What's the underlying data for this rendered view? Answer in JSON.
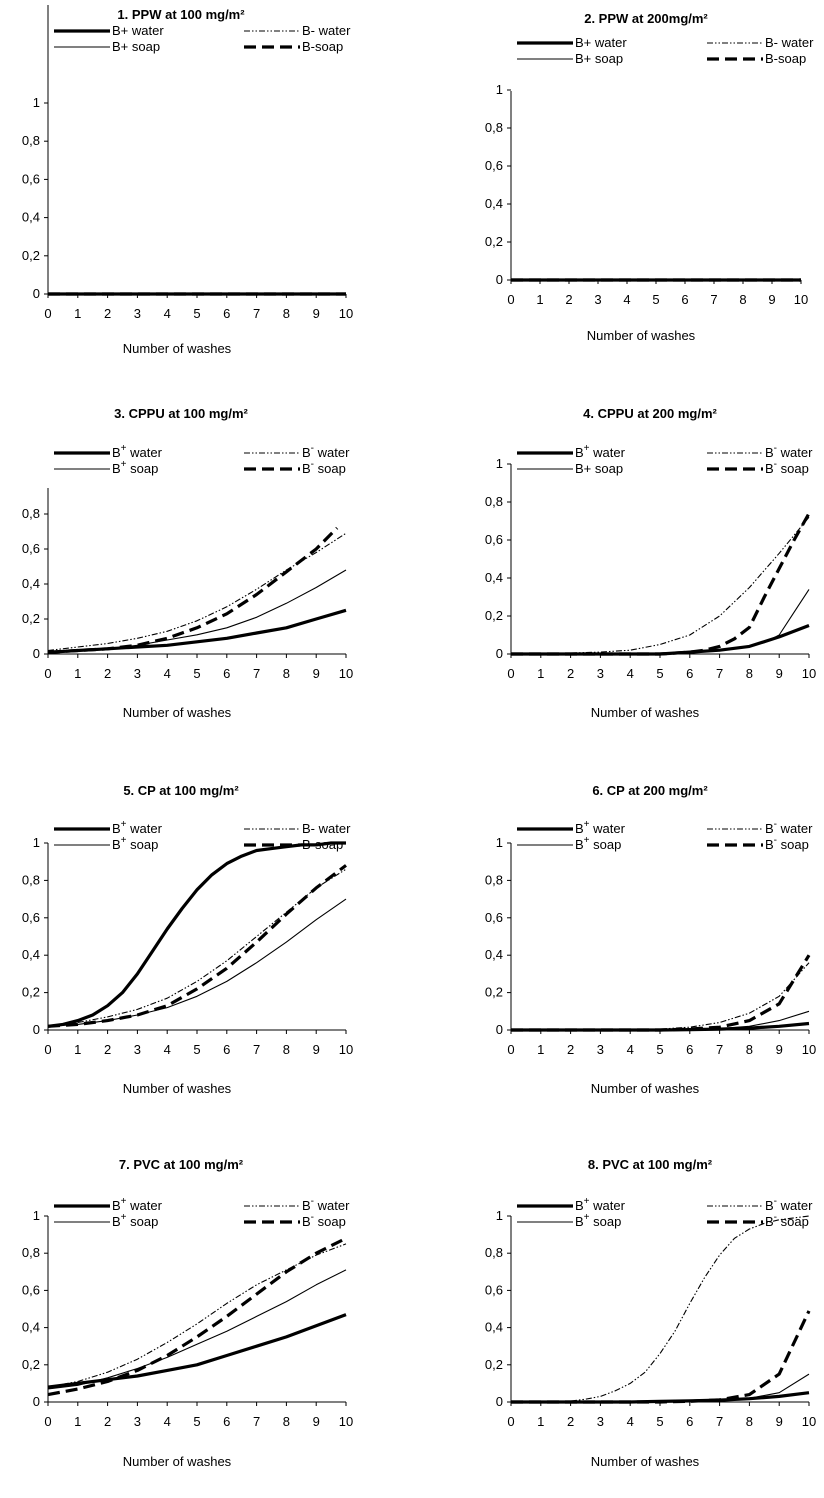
{
  "figure": {
    "background": "#ffffff",
    "line_color": "#000000"
  },
  "chart_data": [
    {
      "type": "line",
      "title": "1. PPW at 100 mg/m²",
      "xlabel": "Number of washes",
      "ylabel": "",
      "xlim": [
        0,
        10
      ],
      "ylim": [
        0,
        1
      ],
      "x_ticks": [
        "0",
        "1",
        "2",
        "3",
        "4",
        "5",
        "6",
        "7",
        "8",
        "9",
        "10"
      ],
      "y_ticks": [
        "0",
        "0,2",
        "0,4",
        "0,6",
        "0,8",
        "1"
      ],
      "grid": false,
      "legend": "top",
      "series": [
        {
          "name": "B+ water",
          "style": "thick-solid",
          "x": [
            0,
            10
          ],
          "y": [
            0,
            0
          ]
        },
        {
          "name": "B- water",
          "style": "dash-dot-dot",
          "x": [
            0,
            10
          ],
          "y": [
            0,
            0
          ]
        },
        {
          "name": "B+ soap",
          "style": "thin-solid",
          "x": [
            0,
            10
          ],
          "y": [
            0,
            0
          ]
        },
        {
          "name": "B-soap",
          "style": "thick-dash",
          "x": [
            0,
            10
          ],
          "y": [
            0,
            0
          ]
        }
      ]
    },
    {
      "type": "line",
      "title": "2. PPW at 200mg/m²",
      "xlabel": "Number of washes",
      "ylabel": "",
      "xlim": [
        0,
        10
      ],
      "ylim": [
        0,
        1
      ],
      "x_ticks": [
        "0",
        "1",
        "2",
        "3",
        "4",
        "5",
        "6",
        "7",
        "8",
        "9",
        "10"
      ],
      "y_ticks": [
        "0",
        "0,2",
        "0,4",
        "0,6",
        "0,8",
        "1"
      ],
      "grid": false,
      "legend": "top",
      "series": [
        {
          "name": "B+ water",
          "style": "thick-solid",
          "x": [
            0,
            10
          ],
          "y": [
            0,
            0
          ]
        },
        {
          "name": "B- water",
          "style": "dash-dot-dot",
          "x": [
            0,
            10
          ],
          "y": [
            0,
            0
          ]
        },
        {
          "name": "B+ soap",
          "style": "thin-solid",
          "x": [
            0,
            10
          ],
          "y": [
            0,
            0
          ]
        },
        {
          "name": "B-soap",
          "style": "thick-dash",
          "x": [
            0,
            10
          ],
          "y": [
            0,
            0
          ]
        }
      ]
    },
    {
      "type": "line",
      "title": "3. CPPU at 100 mg/m²",
      "xlabel": "Number of washes",
      "ylabel": "",
      "xlim": [
        0,
        10
      ],
      "ylim": [
        0,
        0.95
      ],
      "x_ticks": [
        "0",
        "1",
        "2",
        "3",
        "4",
        "5",
        "6",
        "7",
        "8",
        "9",
        "10"
      ],
      "y_ticks": [
        "0",
        "0,2",
        "0,4",
        "0,6",
        "0,8"
      ],
      "grid": false,
      "legend": "top",
      "series": [
        {
          "name": "B water",
          "sup": "+",
          "style": "thick-solid",
          "x": [
            0,
            1,
            2,
            3,
            4,
            5,
            6,
            7,
            8,
            9,
            10
          ],
          "y": [
            0.01,
            0.02,
            0.03,
            0.04,
            0.05,
            0.07,
            0.09,
            0.12,
            0.15,
            0.2,
            0.25
          ]
        },
        {
          "name": "B water",
          "sup": "-",
          "style": "dash-dot-dot",
          "x": [
            0,
            1,
            2,
            3,
            4,
            5,
            6,
            7,
            8,
            9,
            10
          ],
          "y": [
            0.02,
            0.04,
            0.06,
            0.09,
            0.13,
            0.19,
            0.27,
            0.37,
            0.48,
            0.58,
            0.69
          ]
        },
        {
          "name": "B soap",
          "sup": "+",
          "style": "thin-solid",
          "x": [
            0,
            1,
            2,
            3,
            4,
            5,
            6,
            7,
            8,
            9,
            10
          ],
          "y": [
            0.01,
            0.02,
            0.03,
            0.05,
            0.08,
            0.11,
            0.15,
            0.21,
            0.29,
            0.38,
            0.48
          ]
        },
        {
          "name": "B soap",
          "sup": "-",
          "style": "thick-dash",
          "x": [
            0,
            1,
            2,
            3,
            4,
            5,
            6,
            7,
            8,
            9,
            9.7
          ],
          "y": [
            0.01,
            0.02,
            0.03,
            0.05,
            0.09,
            0.15,
            0.23,
            0.34,
            0.47,
            0.6,
            0.72
          ]
        }
      ]
    },
    {
      "type": "line",
      "title": "4. CPPU at 200 mg/m²",
      "xlabel": "Number of washes",
      "ylabel": "",
      "xlim": [
        0,
        10
      ],
      "ylim": [
        0,
        1
      ],
      "x_ticks": [
        "0",
        "1",
        "2",
        "3",
        "4",
        "5",
        "6",
        "7",
        "8",
        "9",
        "10"
      ],
      "y_ticks": [
        "0",
        "0,2",
        "0,4",
        "0,6",
        "0,8",
        "1"
      ],
      "grid": false,
      "legend": "top",
      "series": [
        {
          "name": "B water",
          "sup": "+",
          "style": "thick-solid",
          "x": [
            0,
            1,
            2,
            3,
            4,
            5,
            6,
            7,
            8,
            9,
            10
          ],
          "y": [
            0,
            0,
            0,
            0,
            0,
            0,
            0.01,
            0.02,
            0.04,
            0.09,
            0.15
          ]
        },
        {
          "name": "B water",
          "sup": "-",
          "style": "dash-dot-dot",
          "x": [
            0,
            1,
            2,
            3,
            4,
            5,
            6,
            7,
            8,
            9,
            10
          ],
          "y": [
            0,
            0,
            0.005,
            0.01,
            0.02,
            0.05,
            0.1,
            0.2,
            0.35,
            0.53,
            0.72
          ]
        },
        {
          "name": "B+ soap",
          "style": "thin-solid",
          "x": [
            0,
            1,
            2,
            3,
            4,
            5,
            6,
            7,
            8,
            8.5,
            9,
            9.5,
            10
          ],
          "y": [
            0,
            0,
            0,
            0,
            0,
            0,
            0.01,
            0.02,
            0.04,
            0.06,
            0.1,
            0.22,
            0.34
          ]
        },
        {
          "name": "B soap",
          "sup": "-",
          "style": "thick-dash",
          "x": [
            0,
            1,
            2,
            3,
            4,
            5,
            6,
            6.5,
            7,
            7.5,
            8,
            8.5,
            9,
            9.5,
            10
          ],
          "y": [
            0,
            0,
            0,
            0,
            0,
            0,
            0.01,
            0.02,
            0.04,
            0.08,
            0.14,
            0.3,
            0.45,
            0.6,
            0.74
          ]
        }
      ]
    },
    {
      "type": "line",
      "title": "5. CP at 100 mg/m²",
      "xlabel": "Number of washes",
      "ylabel": "",
      "xlim": [
        0,
        10
      ],
      "ylim": [
        0,
        1
      ],
      "x_ticks": [
        "0",
        "1",
        "2",
        "3",
        "4",
        "5",
        "6",
        "7",
        "8",
        "9",
        "10"
      ],
      "y_ticks": [
        "0",
        "0,2",
        "0,4",
        "0,6",
        "0,8",
        "1"
      ],
      "grid": false,
      "legend": "top",
      "series": [
        {
          "name": "B water",
          "sup": "+",
          "style": "thick-solid",
          "x": [
            0,
            0.5,
            1,
            1.5,
            2,
            2.5,
            3,
            3.5,
            4,
            4.5,
            5,
            5.5,
            6,
            6.5,
            7,
            7.5,
            8,
            8.5,
            9,
            9.5,
            10
          ],
          "y": [
            0.02,
            0.03,
            0.05,
            0.08,
            0.13,
            0.2,
            0.3,
            0.42,
            0.54,
            0.65,
            0.75,
            0.83,
            0.89,
            0.93,
            0.96,
            0.97,
            0.98,
            0.99,
            0.99,
            1.0,
            1.0
          ]
        },
        {
          "name": "B- water",
          "style": "dash-dot-dot",
          "x": [
            0,
            1,
            2,
            3,
            4,
            5,
            6,
            7,
            8,
            9,
            10
          ],
          "y": [
            0.02,
            0.04,
            0.07,
            0.11,
            0.17,
            0.26,
            0.37,
            0.5,
            0.63,
            0.76,
            0.86
          ]
        },
        {
          "name": "B soap",
          "sup": "+",
          "style": "thin-solid",
          "x": [
            0,
            1,
            2,
            3,
            4,
            5,
            6,
            7,
            8,
            9,
            10
          ],
          "y": [
            0.02,
            0.03,
            0.05,
            0.08,
            0.12,
            0.18,
            0.26,
            0.36,
            0.47,
            0.59,
            0.7
          ]
        },
        {
          "name": "B-soap",
          "style": "thick-dash",
          "x": [
            0,
            1,
            2,
            3,
            4,
            5,
            6,
            7,
            8,
            9,
            10
          ],
          "y": [
            0.02,
            0.03,
            0.05,
            0.08,
            0.13,
            0.22,
            0.33,
            0.47,
            0.62,
            0.76,
            0.88
          ]
        }
      ]
    },
    {
      "type": "line",
      "title": "6. CP at 200 mg/m²",
      "xlabel": "Number of washes",
      "ylabel": "",
      "xlim": [
        0,
        10
      ],
      "ylim": [
        0,
        1
      ],
      "x_ticks": [
        "0",
        "1",
        "2",
        "3",
        "4",
        "5",
        "6",
        "7",
        "8",
        "9",
        "10"
      ],
      "y_ticks": [
        "0",
        "0,2",
        "0,4",
        "0,6",
        "0,8",
        "1"
      ],
      "grid": false,
      "legend": "top",
      "series": [
        {
          "name": "B water",
          "sup": "+",
          "style": "thick-solid",
          "x": [
            0,
            1,
            2,
            3,
            4,
            5,
            6,
            7,
            8,
            9,
            10
          ],
          "y": [
            0,
            0,
            0,
            0,
            0,
            0,
            0.002,
            0.005,
            0.01,
            0.02,
            0.035
          ]
        },
        {
          "name": "B water",
          "sup": "-",
          "style": "dash-dot-dot",
          "x": [
            0,
            1,
            2,
            3,
            4,
            5,
            6,
            7,
            8,
            9,
            10
          ],
          "y": [
            0,
            0,
            0,
            0,
            0,
            0.005,
            0.015,
            0.04,
            0.09,
            0.18,
            0.36
          ]
        },
        {
          "name": "B soap",
          "sup": "+",
          "style": "thin-solid",
          "x": [
            0,
            1,
            2,
            3,
            4,
            5,
            6,
            7,
            8,
            9,
            10
          ],
          "y": [
            0,
            0,
            0,
            0,
            0,
            0,
            0.002,
            0.008,
            0.02,
            0.05,
            0.1
          ]
        },
        {
          "name": "B soap",
          "sup": "-",
          "style": "thick-dash",
          "x": [
            0,
            1,
            2,
            3,
            4,
            5,
            6,
            7,
            8,
            9,
            10
          ],
          "y": [
            0,
            0,
            0,
            0,
            0,
            0,
            0.005,
            0.015,
            0.05,
            0.14,
            0.4
          ]
        }
      ]
    },
    {
      "type": "line",
      "title": "7. PVC at 100 mg/m²",
      "xlabel": "Number of washes",
      "ylabel": "",
      "xlim": [
        0,
        10
      ],
      "ylim": [
        0,
        1
      ],
      "x_ticks": [
        "0",
        "1",
        "2",
        "3",
        "4",
        "5",
        "6",
        "7",
        "8",
        "9",
        "10"
      ],
      "y_ticks": [
        "0",
        "0,2",
        "0,4",
        "0,6",
        "0,8",
        "1"
      ],
      "grid": false,
      "legend": "top",
      "series": [
        {
          "name": "B water",
          "sup": "+",
          "style": "thick-solid",
          "x": [
            0,
            1,
            2,
            3,
            4,
            5,
            6,
            7,
            8,
            9,
            10
          ],
          "y": [
            0.08,
            0.1,
            0.12,
            0.14,
            0.17,
            0.2,
            0.25,
            0.3,
            0.35,
            0.41,
            0.47
          ]
        },
        {
          "name": "B water",
          "sup": "-",
          "style": "dash-dot-dot",
          "x": [
            0,
            1,
            2,
            3,
            4,
            5,
            6,
            7,
            8,
            9,
            10
          ],
          "y": [
            0.08,
            0.11,
            0.16,
            0.23,
            0.32,
            0.42,
            0.53,
            0.63,
            0.71,
            0.79,
            0.85
          ]
        },
        {
          "name": "B soap",
          "sup": "+",
          "style": "thin-solid",
          "x": [
            0,
            1,
            2,
            3,
            4,
            5,
            6,
            7,
            8,
            9,
            10
          ],
          "y": [
            0.07,
            0.09,
            0.13,
            0.18,
            0.24,
            0.31,
            0.38,
            0.46,
            0.54,
            0.63,
            0.71
          ]
        },
        {
          "name": "B soap",
          "sup": "-",
          "style": "thick-dash",
          "x": [
            0,
            1,
            2,
            3,
            4,
            5,
            6,
            7,
            8,
            9,
            10
          ],
          "y": [
            0.04,
            0.07,
            0.11,
            0.17,
            0.25,
            0.35,
            0.46,
            0.58,
            0.7,
            0.8,
            0.88
          ]
        }
      ]
    },
    {
      "type": "line",
      "title": "8. PVC at 100 mg/m²",
      "xlabel": "Number of washes",
      "ylabel": "",
      "xlim": [
        0,
        10
      ],
      "ylim": [
        0,
        1
      ],
      "x_ticks": [
        "0",
        "1",
        "2",
        "3",
        "4",
        "5",
        "6",
        "7",
        "8",
        "9",
        "10"
      ],
      "y_ticks": [
        "0",
        "0,2",
        "0,4",
        "0,6",
        "0,8",
        "1"
      ],
      "grid": false,
      "legend": "top",
      "series": [
        {
          "name": "B water",
          "sup": "+",
          "style": "thick-solid",
          "x": [
            0,
            1,
            2,
            3,
            4,
            5,
            6,
            7,
            8,
            9,
            10
          ],
          "y": [
            0,
            0,
            0,
            0,
            0,
            0.003,
            0.006,
            0.01,
            0.018,
            0.03,
            0.05
          ]
        },
        {
          "name": "B water",
          "sup": "-",
          "style": "dash-dot-dot",
          "x": [
            0,
            1,
            2,
            2.5,
            3,
            3.5,
            4,
            4.5,
            5,
            5.5,
            6,
            6.5,
            7,
            7.5,
            8,
            8.5,
            9,
            9.5,
            10
          ],
          "y": [
            0,
            0,
            0.005,
            0.015,
            0.03,
            0.06,
            0.1,
            0.16,
            0.26,
            0.38,
            0.53,
            0.67,
            0.79,
            0.88,
            0.93,
            0.96,
            0.98,
            0.99,
            1.0
          ]
        },
        {
          "name": "B soap",
          "sup": "+",
          "style": "thin-solid",
          "x": [
            0,
            1,
            2,
            3,
            4,
            5,
            6,
            7,
            8,
            9,
            10
          ],
          "y": [
            0,
            0,
            0,
            0,
            0,
            0,
            0.003,
            0.008,
            0.02,
            0.05,
            0.15
          ]
        },
        {
          "name": "B soap",
          "sup": "-",
          "style": "thick-dash",
          "x": [
            0,
            1,
            2,
            3,
            4,
            5,
            6,
            7,
            8,
            9,
            10
          ],
          "y": [
            0,
            0,
            0,
            0,
            0,
            0,
            0.004,
            0.012,
            0.04,
            0.15,
            0.49
          ]
        }
      ]
    }
  ]
}
